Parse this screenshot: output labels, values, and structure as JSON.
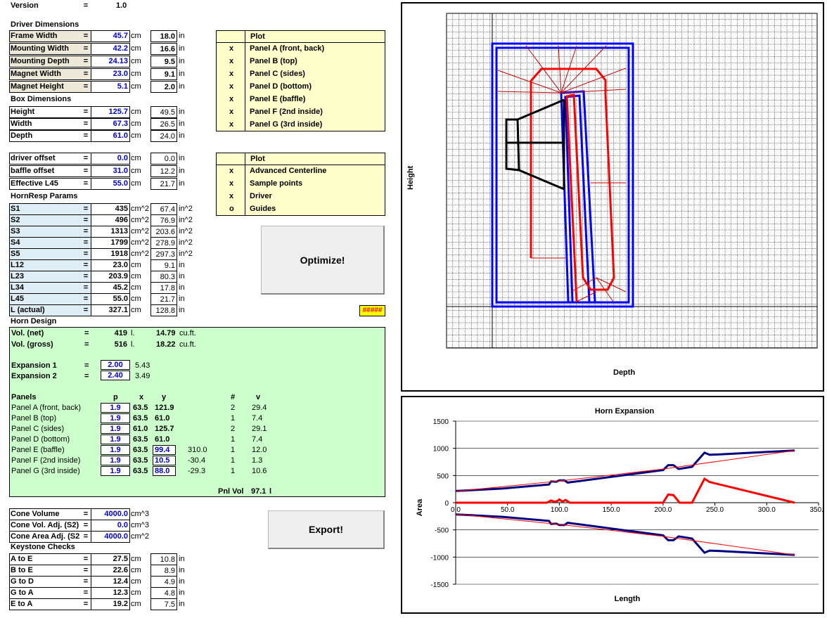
{
  "version": {
    "label": "Version",
    "eq": "=",
    "value": "1.0"
  },
  "sections": {
    "driver": "Driver Dimensions",
    "box": "Box Dimensions",
    "hornresp": "HornResp Params",
    "horn_design": "Horn Design",
    "keystone": "Keystone Checks"
  },
  "driver_rows": [
    {
      "label": "Frame Width",
      "v1": "45.7",
      "u1": "cm",
      "v2": "18.0",
      "u2": "in"
    },
    {
      "label": "Mounting Width",
      "v1": "42.2",
      "u1": "cm",
      "v2": "16.6",
      "u2": "in"
    },
    {
      "label": "Mounting Depth",
      "v1": "24.13",
      "u1": "cm",
      "v2": "9.5",
      "u2": "in"
    },
    {
      "label": "Magnet Width",
      "v1": "23.0",
      "u1": "cm",
      "v2": "9.1",
      "u2": "in"
    },
    {
      "label": "Magnet Height",
      "v1": "5.1",
      "u1": "cm",
      "v2": "2.0",
      "u2": "in"
    }
  ],
  "box_rows": [
    {
      "label": "Height",
      "v1": "125.7",
      "u1": "cm",
      "v2": "49.5",
      "u2": "in"
    },
    {
      "label": "Width",
      "v1": "67.3",
      "u1": "cm",
      "v2": "26.5",
      "u2": "in"
    },
    {
      "label": "Depth",
      "v1": "61.0",
      "u1": "cm",
      "v2": "24.0",
      "u2": "in"
    }
  ],
  "offset_rows": [
    {
      "label": "driver offset",
      "v1": "0.0",
      "u1": "cm",
      "v2": "0.0",
      "u2": "in"
    },
    {
      "label": "baffle offset",
      "v1": "31.0",
      "u1": "cm",
      "v2": "12.2",
      "u2": "in"
    },
    {
      "label": "Effective L45",
      "v1": "55.0",
      "u1": "cm",
      "v2": "21.7",
      "u2": "in"
    }
  ],
  "hr_rows": [
    {
      "label": "S1",
      "v1": "435",
      "u1": "cm^2",
      "v2": "67.4",
      "u2": "in^2"
    },
    {
      "label": "S2",
      "v1": "496",
      "u1": "cm^2",
      "v2": "76.9",
      "u2": "in^2"
    },
    {
      "label": "S3",
      "v1": "1313",
      "u1": "cm^2",
      "v2": "203.6",
      "u2": "in^2"
    },
    {
      "label": "S4",
      "v1": "1799",
      "u1": "cm^2",
      "v2": "278.9",
      "u2": "in^2"
    },
    {
      "label": "S5",
      "v1": "1918",
      "u1": "cm^2",
      "v2": "297.3",
      "u2": "in^2"
    },
    {
      "label": "L12",
      "v1": "23.0",
      "u1": "cm",
      "v2": "9.1",
      "u2": "in"
    },
    {
      "label": "L23",
      "v1": "203.9",
      "u1": "cm",
      "v2": "80.3",
      "u2": "in"
    },
    {
      "label": "L34",
      "v1": "45.2",
      "u1": "cm",
      "v2": "17.8",
      "u2": "in"
    },
    {
      "label": "L45",
      "v1": "55.0",
      "u1": "cm",
      "v2": "21.7",
      "u2": "in"
    },
    {
      "label": "L (actual)",
      "v1": "327.1",
      "u1": "cm",
      "v2": "128.8",
      "u2": "in"
    }
  ],
  "eq": "=",
  "plot1": {
    "header": "Plot",
    "rows": [
      {
        "mark": "x",
        "label": "Panel A (front, back)"
      },
      {
        "mark": "x",
        "label": "Panel B (top)"
      },
      {
        "mark": "x",
        "label": "Panel C (sides)"
      },
      {
        "mark": "x",
        "label": "Panel D (bottom)"
      },
      {
        "mark": "x",
        "label": "Panel E (baffle)"
      },
      {
        "mark": "x",
        "label": "Panel F (2nd inside)"
      },
      {
        "mark": "x",
        "label": "Panel G (3rd inside)"
      }
    ]
  },
  "plot2": {
    "header": "Plot",
    "rows": [
      {
        "mark": "x",
        "label": "Advanced Centerline"
      },
      {
        "mark": "x",
        "label": "Sample points"
      },
      {
        "mark": "x",
        "label": "Driver"
      },
      {
        "mark": "o",
        "label": "Guides"
      }
    ]
  },
  "buttons": {
    "optimize": "Optimize!",
    "export": "Export!"
  },
  "error_cell": "#####",
  "horn_design": {
    "vol_net_label": "Vol. (net)",
    "vol_net": "419",
    "vol_net_u": "l.",
    "vol_net_ft": "14.79",
    "vol_net_ftu": "cu.ft.",
    "vol_gross_label": "Vol. (gross)",
    "vol_gross": "516",
    "vol_gross_u": "l.",
    "vol_gross_ft": "18.22",
    "vol_gross_ftu": "cu.ft.",
    "exp1_label": "Expansion 1",
    "exp1": "2.00",
    "exp1_b": "5.43",
    "exp2_label": "Expansion 2",
    "exp2": "2.40",
    "exp2_b": "3.49",
    "panels_header": {
      "name": "Panels",
      "p": "p",
      "x": "x",
      "y": "y",
      "n": "#",
      "v": "v"
    },
    "panels": [
      {
        "name": "Panel A (front, back)",
        "p": "1.9",
        "x": "63.5",
        "y": "121.9",
        "extra": "",
        "n": "2",
        "v": "29.4"
      },
      {
        "name": "Panel B (top)",
        "p": "1.9",
        "x": "63.5",
        "y": "61.0",
        "extra": "",
        "n": "1",
        "v": "7.4"
      },
      {
        "name": "Panel C (sides)",
        "p": "1.9",
        "x": "61.0",
        "y": "125.7",
        "extra": "",
        "n": "2",
        "v": "29.1"
      },
      {
        "name": "Panel D (bottom)",
        "p": "1.9",
        "x": "63.5",
        "y": "61.0",
        "extra": "",
        "n": "1",
        "v": "7.4"
      },
      {
        "name": "Panel E (baffle)",
        "p": "1.9",
        "x": "63.5",
        "y": "99.4",
        "extra": "310.0",
        "n": "1",
        "v": "12.0"
      },
      {
        "name": "Panel F (2nd inside)",
        "p": "1.9",
        "x": "63.5",
        "y": "10.5",
        "extra": "-30.4",
        "n": "1",
        "v": "1.3"
      },
      {
        "name": "Panel G (3rd inside)",
        "p": "1.9",
        "x": "63.5",
        "y": "88.0",
        "extra": "-29.3",
        "n": "1",
        "v": "10.6"
      }
    ],
    "pnl_vol_label": "Pnl Vol",
    "pnl_vol": "97.1",
    "pnl_vol_u": "l"
  },
  "cone_rows": [
    {
      "label": "Cone Volume",
      "v1": "4000.0",
      "u1": "cm^3"
    },
    {
      "label": "Cone Vol. Adj. (S2)",
      "v1": "0.0",
      "u1": "cm^3"
    },
    {
      "label": "Cone Area Adj. (S2",
      "v1": "4000.0",
      "u1": "cm^2"
    }
  ],
  "keystone_rows": [
    {
      "label": "A to E",
      "v1": "27.5",
      "u1": "cm",
      "v2": "10.8",
      "u2": "in"
    },
    {
      "label": "B to E",
      "v1": "22.6",
      "u1": "cm",
      "v2": "8.9",
      "u2": "in"
    },
    {
      "label": "G to D",
      "v1": "12.4",
      "u1": "cm",
      "v2": "4.9",
      "u2": "in"
    },
    {
      "label": "G to A",
      "v1": "12.3",
      "u1": "cm",
      "v2": "4.8",
      "u2": "in"
    },
    {
      "label": "E to A",
      "v1": "19.2",
      "u1": "cm",
      "v2": "7.5",
      "u2": "in"
    }
  ],
  "layout_chart": {
    "xlabel": "Depth",
    "ylabel": "Height"
  },
  "chart_data": {
    "type": "line",
    "title": "Horn Expansion",
    "xlabel": "Length",
    "ylabel": "Area",
    "xlim": [
      0,
      350
    ],
    "ylim": [
      -1500,
      1500
    ],
    "xticks": [
      "0.0",
      "50.0",
      "100.0",
      "150.0",
      "200.0",
      "250.0",
      "300.0",
      "350.0"
    ],
    "yticks": [
      "1500",
      "1000",
      "500",
      "0",
      "-500",
      "-1000",
      "-1500"
    ],
    "series": [
      {
        "color": "#000080",
        "points": [
          [
            0,
            215
          ],
          [
            45,
            260
          ],
          [
            90,
            335
          ],
          [
            92,
            390
          ],
          [
            97,
            385
          ],
          [
            100,
            410
          ],
          [
            105,
            410
          ],
          [
            108,
            370
          ],
          [
            112,
            380
          ],
          [
            120,
            400
          ],
          [
            200,
            600
          ],
          [
            205,
            690
          ],
          [
            210,
            690
          ],
          [
            215,
            620
          ],
          [
            228,
            660
          ],
          [
            240,
            920
          ],
          [
            245,
            880
          ],
          [
            255,
            890
          ],
          [
            327,
            960
          ]
        ]
      },
      {
        "color": "#000080",
        "points": [
          [
            0,
            -215
          ],
          [
            45,
            -260
          ],
          [
            90,
            -335
          ],
          [
            92,
            -390
          ],
          [
            97,
            -385
          ],
          [
            100,
            -410
          ],
          [
            105,
            -410
          ],
          [
            108,
            -370
          ],
          [
            112,
            -380
          ],
          [
            120,
            -400
          ],
          [
            200,
            -600
          ],
          [
            205,
            -690
          ],
          [
            210,
            -690
          ],
          [
            215,
            -620
          ],
          [
            228,
            -660
          ],
          [
            240,
            -920
          ],
          [
            245,
            -880
          ],
          [
            255,
            -890
          ],
          [
            327,
            -960
          ]
        ]
      },
      {
        "color": "#ff0000",
        "points": [
          [
            0,
            210
          ],
          [
            100,
            400
          ],
          [
            200,
            620
          ],
          [
            327,
            960
          ]
        ]
      },
      {
        "color": "#ff0000",
        "points": [
          [
            0,
            -210
          ],
          [
            100,
            -400
          ],
          [
            200,
            -620
          ],
          [
            327,
            -960
          ]
        ]
      },
      {
        "color": "#ff0000",
        "points": [
          [
            0,
            0
          ],
          [
            88,
            0
          ],
          [
            92,
            40
          ],
          [
            95,
            20
          ],
          [
            98,
            30
          ],
          [
            100,
            60
          ],
          [
            103,
            20
          ],
          [
            106,
            50
          ],
          [
            110,
            0
          ],
          [
            200,
            0
          ],
          [
            205,
            150
          ],
          [
            210,
            140
          ],
          [
            216,
            0
          ],
          [
            228,
            0
          ],
          [
            240,
            440
          ],
          [
            245,
            380
          ],
          [
            327,
            0
          ]
        ]
      }
    ]
  }
}
